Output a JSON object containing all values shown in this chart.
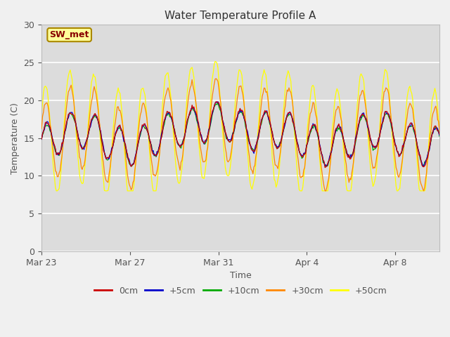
{
  "title": "Water Temperature Profile A",
  "xlabel": "Time",
  "ylabel": "Temperature (C)",
  "ylim": [
    0,
    30
  ],
  "yticks": [
    0,
    5,
    10,
    15,
    20,
    25,
    30
  ],
  "annotation_text": "SW_met",
  "annotation_color": "#880000",
  "annotation_bg": "#ffff99",
  "annotation_border": "#aa8800",
  "fig_bg": "#f0f0f0",
  "plot_bg": "#dcdcdc",
  "grid_color": "#ffffff",
  "series_colors": {
    "0cm": "#cc0000",
    "+5cm": "#0000cc",
    "+10cm": "#00aa00",
    "+30cm": "#ff8800",
    "+50cm": "#ffff00"
  },
  "x_tick_labels": [
    "Mar 23",
    "Mar 27",
    "Mar 31",
    "Apr 4",
    "Apr 8"
  ],
  "x_tick_positions": [
    0,
    4,
    8,
    12,
    16
  ],
  "legend_fontsize": 9,
  "title_fontsize": 11,
  "axis_label_fontsize": 9,
  "tick_fontsize": 9
}
